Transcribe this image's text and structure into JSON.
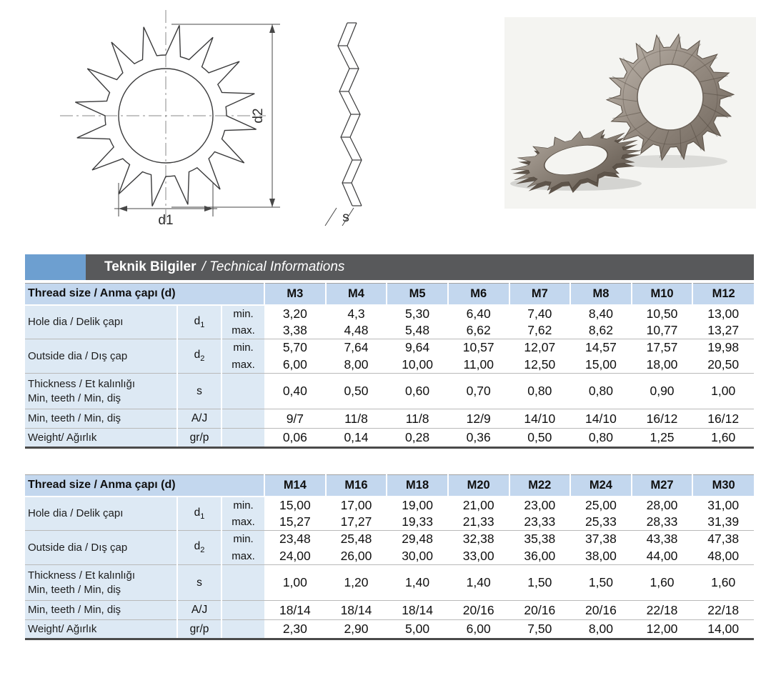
{
  "theme": {
    "accent_blue": "#6d9fd0",
    "bar_gray": "#58595b",
    "table_header_blue": "#c3d7ee",
    "label_blue": "#dde9f4",
    "border_dark": "#4a4a4a",
    "washer_metal": "#948a80"
  },
  "figure": {
    "d1_label": "d1",
    "d2_label": "d2",
    "s_label": "s"
  },
  "header_bar": {
    "title_bold": "Teknik Bilgiler",
    "title_italic": "/ Technical Informations"
  },
  "tables": [
    {
      "header_label": "Thread size / Anma çapı (d)",
      "sizes": [
        "M3",
        "M4",
        "M5",
        "M6",
        "M7",
        "M8",
        "M10",
        "M12"
      ],
      "groups": [
        {
          "label_lines": [
            "Hole dia / Delik çapı"
          ],
          "sym": "d",
          "sub": "1",
          "rows": [
            {
              "tag": "min.",
              "values": [
                "3,20",
                "4,3",
                "5,30",
                "6,40",
                "7,40",
                "8,40",
                "10,50",
                "13,00"
              ]
            },
            {
              "tag": "max.",
              "values": [
                "3,38",
                "4,48",
                "5,48",
                "6,62",
                "7,62",
                "8,62",
                "10,77",
                "13,27"
              ]
            }
          ]
        },
        {
          "label_lines": [
            "Outside dia / Dış çap"
          ],
          "sym": "d",
          "sub": "2",
          "rows": [
            {
              "tag": "min.",
              "values": [
                "5,70",
                "7,64",
                "9,64",
                "10,57",
                "12,07",
                "14,57",
                "17,57",
                "19,98"
              ]
            },
            {
              "tag": "max.",
              "values": [
                "6,00",
                "8,00",
                "10,00",
                "11,00",
                "12,50",
                "15,00",
                "18,00",
                "20,50"
              ]
            }
          ]
        },
        {
          "label_lines": [
            "Thickness / Et kalınlığı",
            "Min, teeth / Min, diş"
          ],
          "sym": "s",
          "values": [
            "0,40",
            "0,50",
            "0,60",
            "0,70",
            "0,80",
            "0,80",
            "0,90",
            "1,00"
          ]
        },
        {
          "label_lines": [
            "Min, teeth / Min, diş"
          ],
          "sym": "A/J",
          "values": [
            "9/7",
            "11/8",
            "11/8",
            "12/9",
            "14/10",
            "14/10",
            "16/12",
            "16/12"
          ]
        },
        {
          "label_lines": [
            "Weight/ Ağırlık"
          ],
          "sym": "gr/p",
          "values": [
            "0,06",
            "0,14",
            "0,28",
            "0,36",
            "0,50",
            "0,80",
            "1,25",
            "1,60"
          ]
        }
      ]
    },
    {
      "header_label": "Thread size / Anma çapı (d)",
      "sizes": [
        "M14",
        "M16",
        "M18",
        "M20",
        "M22",
        "M24",
        "M27",
        "M30"
      ],
      "groups": [
        {
          "label_lines": [
            "Hole dia / Delik çapı"
          ],
          "sym": "d",
          "sub": "1",
          "rows": [
            {
              "tag": "min.",
              "values": [
                "15,00",
                "17,00",
                "19,00",
                "21,00",
                "23,00",
                "25,00",
                "28,00",
                "31,00"
              ]
            },
            {
              "tag": "max.",
              "values": [
                "15,27",
                "17,27",
                "19,33",
                "21,33",
                "23,33",
                "25,33",
                "28,33",
                "31,39"
              ]
            }
          ]
        },
        {
          "label_lines": [
            "Outside dia / Dış çap"
          ],
          "sym": "d",
          "sub": "2",
          "rows": [
            {
              "tag": "min.",
              "values": [
                "23,48",
                "25,48",
                "29,48",
                "32,38",
                "35,38",
                "37,38",
                "43,38",
                "47,38"
              ]
            },
            {
              "tag": "max.",
              "values": [
                "24,00",
                "26,00",
                "30,00",
                "33,00",
                "36,00",
                "38,00",
                "44,00",
                "48,00"
              ]
            }
          ]
        },
        {
          "label_lines": [
            "Thickness / Et kalınlığı",
            "Min, teeth / Min, diş"
          ],
          "sym": "s",
          "values": [
            "1,00",
            "1,20",
            "1,40",
            "1,40",
            "1,50",
            "1,50",
            "1,60",
            "1,60"
          ]
        },
        {
          "label_lines": [
            "Min, teeth / Min, diş"
          ],
          "sym": "A/J",
          "values": [
            "18/14",
            "18/14",
            "18/14",
            "20/16",
            "20/16",
            "20/16",
            "22/18",
            "22/18"
          ]
        },
        {
          "label_lines": [
            "Weight/ Ağırlık"
          ],
          "sym": "gr/p",
          "values": [
            "2,30",
            "2,90",
            "5,00",
            "6,00",
            "7,50",
            "8,00",
            "12,00",
            "14,00"
          ]
        }
      ]
    }
  ]
}
